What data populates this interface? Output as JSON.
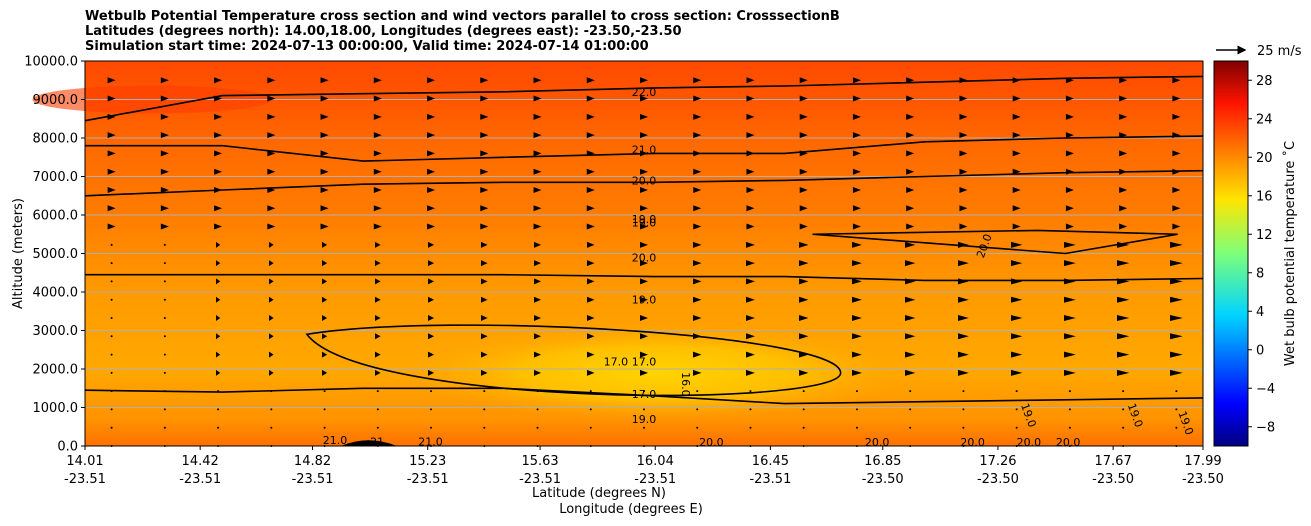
{
  "title_lines": [
    "Wetbulb Potential Temperature cross section and wind vectors parallel to cross section: CrosssectionB",
    "Latitudes (degrees north): 14.00,18.00, Longitudes (degrees east): -23.50,-23.50",
    "Simulation start time: 2024-07-13 00:00:00, Valid time: 2024-07-14 01:00:00"
  ],
  "chart_data": {
    "type": "heatmap",
    "ylabel": "Altitude (meters)",
    "xlabel_lat": "Latitude (degrees N)",
    "xlabel_lon": "Longitude (degrees E)",
    "ylim": [
      0,
      10000
    ],
    "yticks": [
      "0.0",
      "1000.0",
      "2000.0",
      "3000.0",
      "4000.0",
      "5000.0",
      "6000.0",
      "7000.0",
      "8000.0",
      "9000.0",
      "10000.0"
    ],
    "xticks_lat": [
      "14.01",
      "14.42",
      "14.82",
      "15.23",
      "15.63",
      "16.04",
      "16.45",
      "16.85",
      "17.26",
      "17.67",
      "17.99"
    ],
    "xticks_lon": [
      "-23.51",
      "-23.51",
      "-23.51",
      "-23.51",
      "-23.51",
      "-23.51",
      "-23.51",
      "-23.50",
      "-23.50",
      "-23.50",
      "-23.50"
    ],
    "grid": "horizontal",
    "colorbar": {
      "label": "Wet bulb potential temperature $^\\circ$C",
      "min": -10,
      "max": 30,
      "ticks": [
        "−8",
        "−4",
        "0",
        "4",
        "8",
        "12",
        "16",
        "20",
        "24",
        "28"
      ],
      "colormap": "jet"
    },
    "quiver_key": "25 m/s",
    "contour_labels": [
      "22.0",
      "21.0",
      "20.0",
      "19.0",
      "20.0",
      "19.0",
      "17.0",
      "17.0",
      "17.0",
      "16.0",
      "19.0",
      "20.0",
      "21.0",
      "21",
      "21.0",
      "20.0",
      "20.0",
      "20.0",
      "20.0",
      "20.0",
      "19.0",
      "19.0",
      "19.0",
      "19.0"
    ],
    "series": [
      {
        "name": "22.0",
        "x": [
          14.01,
          14.5,
          15.0,
          15.5,
          16.04,
          16.5,
          17.0,
          17.5,
          17.99
        ],
        "y": [
          8450,
          9100,
          9150,
          9200,
          9300,
          9350,
          9450,
          9550,
          9600
        ]
      },
      {
        "name": "21.0",
        "x": [
          14.01,
          14.5,
          15.0,
          15.5,
          16.04,
          16.5,
          17.0,
          17.5,
          17.99
        ],
        "y": [
          7800,
          7800,
          7400,
          7500,
          7600,
          7600,
          7900,
          8000,
          8050
        ]
      },
      {
        "name": "20.0",
        "x": [
          14.01,
          14.5,
          15.0,
          15.5,
          16.04,
          16.5,
          17.0,
          17.5,
          17.99
        ],
        "y": [
          6500,
          6650,
          6800,
          6850,
          6850,
          6900,
          7000,
          7100,
          7150
        ]
      },
      {
        "name": "19.0",
        "x": [
          14.01,
          14.5,
          15.0,
          15.5,
          16.04,
          16.5,
          17.0,
          17.5,
          17.99
        ],
        "y": [
          4450,
          4450,
          4450,
          4450,
          4400,
          4400,
          4300,
          4300,
          4350
        ]
      },
      {
        "name": "17.0",
        "x": [
          14.01,
          14.5,
          15.0,
          15.5,
          16.04,
          16.5,
          17.0,
          17.5,
          17.99
        ],
        "y": [
          1450,
          1400,
          1500,
          1500,
          1300,
          1100,
          1150,
          1200,
          1250
        ]
      }
    ]
  }
}
